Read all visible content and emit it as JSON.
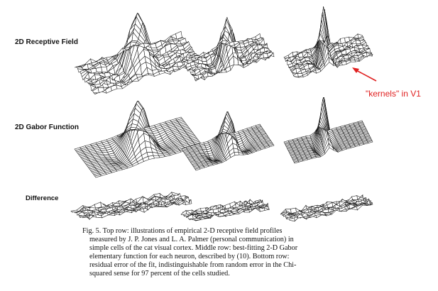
{
  "figure": {
    "row_labels": [
      "2D Receptive Field",
      "2D Gabor Function",
      "Difference"
    ],
    "annotation": {
      "text": "\"kernels\" in V1",
      "color": "#e02020"
    },
    "caption_lines": [
      "Fig. 5. Top row: illustrations of empirical 2-D receptive field profiles",
      "measured by J. P. Jones and L. A. Palmer (personal communication) in",
      "simple cells of the cat visual cortex. Middle row: best-fitting 2-D Gabor",
      "elementary function for each neuron, described by (10). Bottom row:",
      "residual error of the fit, indistinguishable from random error in the Chi-",
      "squared sense for 97 percent of the cells studied."
    ]
  }
}
